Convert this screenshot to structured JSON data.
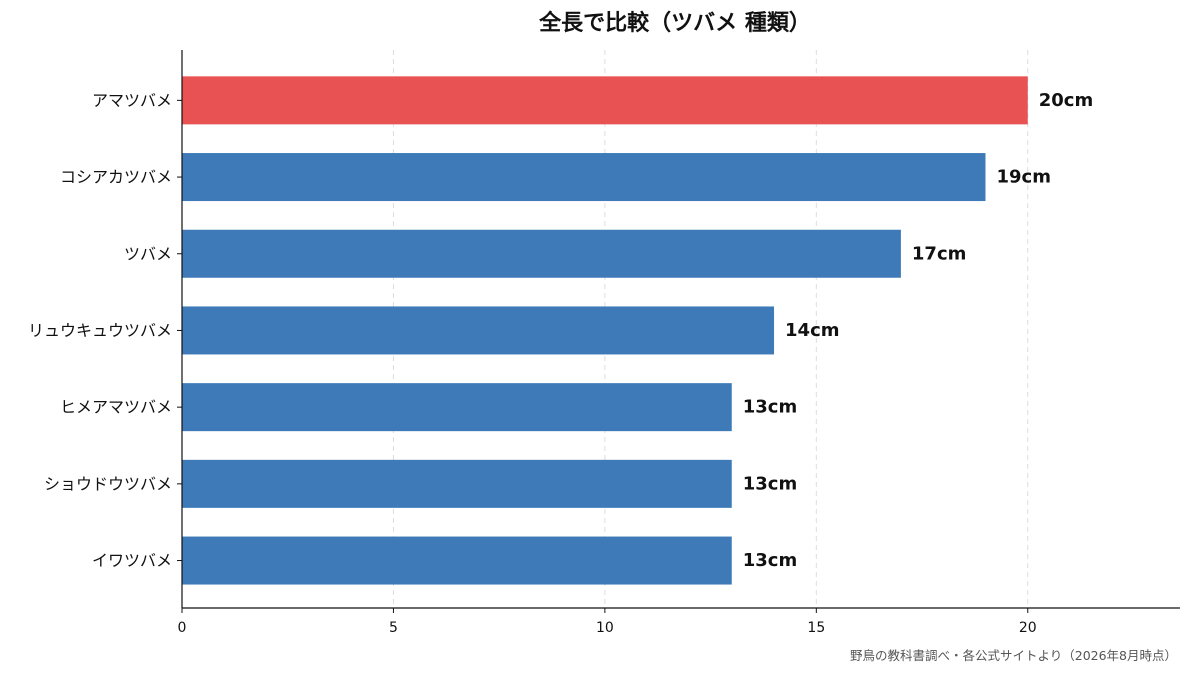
{
  "chart_data": {
    "type": "bar",
    "orientation": "horizontal",
    "title": "全長で比較（ツバメ 種類）",
    "categories": [
      "アマツバメ",
      "コシアカツバメ",
      "ツバメ",
      "リュウキュウツバメ",
      "ヒメアマツバメ",
      "ショウドウツバメ",
      "イワツバメ"
    ],
    "values": [
      20,
      19,
      17,
      14,
      13,
      13,
      13
    ],
    "value_labels": [
      "20cm",
      "19cm",
      "17cm",
      "14cm",
      "13cm",
      "13cm",
      "13cm"
    ],
    "highlight_index": 0,
    "colors": {
      "highlight": "#e85252",
      "default": "#3e7ab8",
      "grid": "#dddddd",
      "axis": "#111111"
    },
    "xlim": [
      0,
      23.6
    ],
    "xticks": [
      0,
      5,
      10,
      15,
      20
    ],
    "xtick_labels": [
      "0",
      "5",
      "10",
      "15",
      "20"
    ],
    "xlabel": "",
    "ylabel": "",
    "grid": "x-dashed",
    "legend": "none"
  },
  "source_note": "野鳥の教科書調べ・各公式サイトより（2026年8月時点）"
}
